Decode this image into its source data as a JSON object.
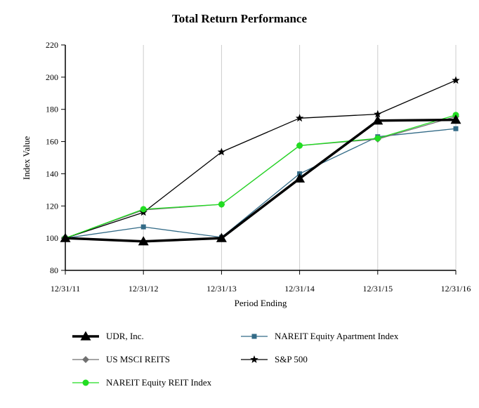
{
  "chart_data": {
    "type": "line",
    "title": "Total Return Performance",
    "xlabel": "Period Ending",
    "ylabel": "Index Value",
    "categories": [
      "12/31/11",
      "12/31/12",
      "12/31/13",
      "12/31/14",
      "12/31/15",
      "12/31/16"
    ],
    "ylim": [
      80,
      220
    ],
    "yticks": [
      "80",
      "100",
      "120",
      "140",
      "160",
      "180",
      "200",
      "220"
    ],
    "grid": "vertical",
    "legend": "bottom",
    "series": [
      {
        "name": "UDR, Inc.",
        "values": [
          100,
          98,
          100,
          137,
          173,
          173.5
        ],
        "color": "#000000",
        "marker": "triangle"
      },
      {
        "name": "NAREIT Equity Apartment Index",
        "values": [
          100,
          107,
          100.5,
          140,
          163,
          168
        ],
        "color": "#336b87",
        "marker": "square"
      },
      {
        "name": "US MSCI REITS",
        "values": [
          100,
          117.5,
          121,
          157.5,
          161.5,
          175.5
        ],
        "color": "#707070",
        "marker": "diamond"
      },
      {
        "name": "S&P 500",
        "values": [
          100,
          116,
          153.5,
          174.5,
          177,
          198
        ],
        "color": "#000000",
        "marker": "star"
      },
      {
        "name": "NAREIT Equity REIT Index",
        "values": [
          100,
          118,
          121,
          157.5,
          162,
          176.5
        ],
        "color": "#22dd22",
        "marker": "circle"
      }
    ]
  }
}
